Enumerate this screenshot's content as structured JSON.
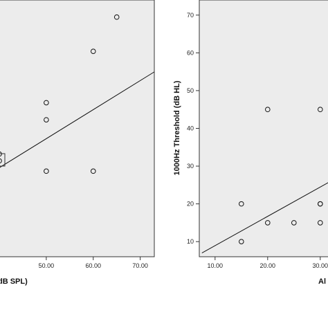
{
  "chart_data": [
    {
      "type": "scatter",
      "xlabel": "dB SPL)",
      "ylabel": "",
      "xlim": [
        40,
        73
      ],
      "ylim": [
        0,
        75
      ],
      "x_ticks": [
        50,
        60,
        70
      ],
      "x_tick_labels": [
        "50.00",
        "60.00",
        "70.00"
      ],
      "grid": false,
      "background": "#ececec",
      "points": [
        {
          "x": 65,
          "y": 70
        },
        {
          "x": 60,
          "y": 60
        },
        {
          "x": 50,
          "y": 45
        },
        {
          "x": 50,
          "y": 40
        },
        {
          "x": 40,
          "y": 28
        },
        {
          "x": 40,
          "y": 30
        },
        {
          "x": 50,
          "y": 25
        },
        {
          "x": 60,
          "y": 25
        }
      ],
      "fit_line": {
        "x": [
          40,
          73
        ],
        "y": [
          26,
          54
        ]
      }
    },
    {
      "type": "scatter",
      "xlabel": "Al",
      "ylabel": "1000Hz Threshold (dB HL)",
      "xlim": [
        7,
        32
      ],
      "ylim": [
        6,
        74
      ],
      "x_ticks": [
        10,
        20,
        30
      ],
      "x_tick_labels": [
        "10.00",
        "20.00",
        "30.00"
      ],
      "y_ticks": [
        10,
        20,
        30,
        40,
        50,
        60,
        70
      ],
      "y_tick_labels": [
        "10",
        "20",
        "30",
        "40",
        "50",
        "60",
        "70"
      ],
      "grid": false,
      "background": "#ececec",
      "points": [
        {
          "x": 20,
          "y": 45
        },
        {
          "x": 30,
          "y": 45
        },
        {
          "x": 15,
          "y": 20
        },
        {
          "x": 20,
          "y": 15
        },
        {
          "x": 25,
          "y": 15
        },
        {
          "x": 30,
          "y": 15
        },
        {
          "x": 30,
          "y": 20
        },
        {
          "x": 30,
          "y": 20
        },
        {
          "x": 15,
          "y": 10
        }
      ],
      "fit_line": {
        "x": [
          7.5,
          32
        ],
        "y": [
          7,
          26
        ]
      }
    }
  ]
}
